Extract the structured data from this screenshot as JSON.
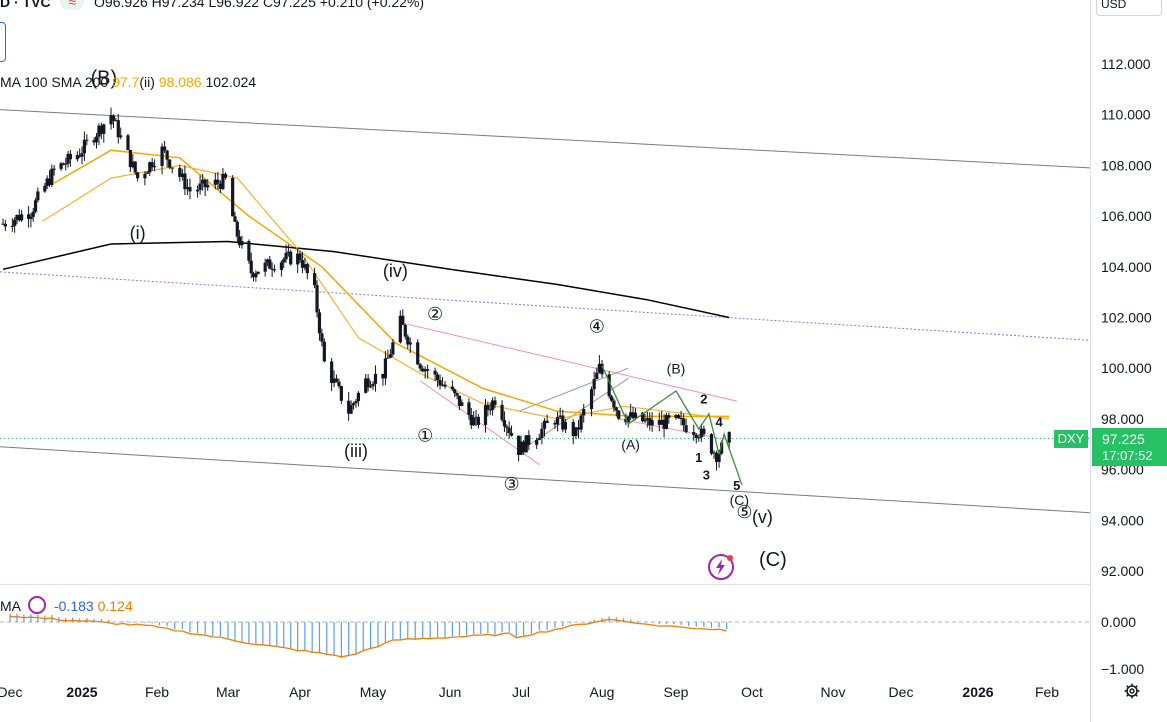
{
  "header": {
    "symbol_text": "D · TVC",
    "ohlc_text": "O96.926 H97.234 L96.922 C97.225 +0.210 (+0.22%)",
    "currency": "USD"
  },
  "indicators": {
    "prefix": "MA 100 SMA 200",
    "ma_value": "97.7",
    "wave_ii": "(ii)",
    "sma100_value": "98.086",
    "sma200_value": "102.024"
  },
  "price_tag": {
    "symbol": "DXY",
    "price": "97.225",
    "time": "17:07:52"
  },
  "oscillator": {
    "label_prefix": "MA",
    "value1": "-0.183",
    "value2": "0.124"
  },
  "colors": {
    "up": "#089981",
    "down": "#f23645",
    "sma100": "#f7a600",
    "sma200": "#000000",
    "wave_green": "#388e3c",
    "price_tag": "#26c165",
    "macd_line": "#f57c00",
    "hist": "#2962ff"
  },
  "icons": [
    "settings-gear-icon",
    "lightning-bolt-icon",
    "oscillator-toggle-icon"
  ],
  "chart_data": {
    "type": "candlestick",
    "title": "DXY",
    "ylim": [
      91.5,
      113.5
    ],
    "y_ticks": [
      "112.000",
      "110.000",
      "108.000",
      "106.000",
      "104.000",
      "102.000",
      "100.000",
      "98.000",
      "96.000",
      "94.000",
      "92.000"
    ],
    "x_ticks": [
      "Dec",
      "2025",
      "Feb",
      "Mar",
      "Apr",
      "May",
      "Jun",
      "Jul",
      "Aug",
      "Sep",
      "Oct",
      "Nov",
      "Dec",
      "2026",
      "Feb"
    ],
    "osc_ticks": [
      "0.000",
      "−1.000"
    ],
    "price_path": [
      [
        "2024-11-28",
        105.7
      ],
      [
        "2024-12-10",
        106.2
      ],
      [
        "2024-12-20",
        107.8
      ],
      [
        "2024-12-31",
        108.5
      ],
      [
        "2025-01-13",
        110.0
      ],
      [
        "2025-01-24",
        107.5
      ],
      [
        "2025-02-03",
        108.6
      ],
      [
        "2025-02-14",
        107.0
      ],
      [
        "2025-02-28",
        107.4
      ],
      [
        "2025-03-04",
        105.5
      ],
      [
        "2025-03-11",
        103.8
      ],
      [
        "2025-03-25",
        104.3
      ],
      [
        "2025-04-01",
        104.4
      ],
      [
        "2025-04-07",
        103.0
      ],
      [
        "2025-04-11",
        100.2
      ],
      [
        "2025-04-21",
        98.3
      ],
      [
        "2025-04-28",
        99.5
      ],
      [
        "2025-05-05",
        99.8
      ],
      [
        "2025-05-12",
        101.8
      ],
      [
        "2025-05-20",
        100.2
      ],
      [
        "2025-06-02",
        99.0
      ],
      [
        "2025-06-12",
        97.8
      ],
      [
        "2025-06-20",
        98.8
      ],
      [
        "2025-06-30",
        96.8
      ],
      [
        "2025-07-14",
        98.0
      ],
      [
        "2025-07-22",
        97.4
      ],
      [
        "2025-07-31",
        100.0
      ],
      [
        "2025-08-08",
        98.2
      ],
      [
        "2025-08-22",
        97.8
      ],
      [
        "2025-09-01",
        97.9
      ],
      [
        "2025-09-10",
        97.5
      ],
      [
        "2025-09-17",
        96.6
      ],
      [
        "2025-09-22",
        97.2
      ]
    ],
    "series": [
      {
        "name": "SMA 100",
        "values": [
          [
            [
              "2024-12-20",
              107.3
            ],
            [
              "2025-01-13",
              108.6
            ],
            [
              "2025-02-10",
              108.3
            ],
            [
              "2025-03-10",
              106.0
            ],
            [
              "2025-04-10",
              104.0
            ],
            [
              "2025-05-10",
              101.0
            ],
            [
              "2025-06-15",
              99.2
            ],
            [
              "2025-07-15",
              98.3
            ],
            [
              "2025-08-15",
              98.1
            ],
            [
              "2025-09-22",
              98.1
            ]
          ]
        ]
      },
      {
        "name": "SMA 200",
        "values": [
          [
            [
              "2024-11-28",
              103.9
            ],
            [
              "2025-01-13",
              104.9
            ],
            [
              "2025-03-01",
              105.0
            ],
            [
              "2025-04-15",
              104.6
            ],
            [
              "2025-06-01",
              103.9
            ],
            [
              "2025-07-15",
              103.3
            ],
            [
              "2025-08-20",
              102.7
            ],
            [
              "2025-09-22",
              102.0
            ]
          ]
        ]
      }
    ],
    "wave_labels": [
      {
        "text": "(B)",
        "date": "2025-01-10",
        "price": 111.2
      },
      {
        "text": "(i)",
        "date": "2025-01-24",
        "price": 105.1
      },
      {
        "text": "(iv)",
        "date": "2025-05-10",
        "price": 103.6
      },
      {
        "text": "(iii)",
        "date": "2025-04-24",
        "price": 96.5
      },
      {
        "text": "②",
        "date": "2025-05-26",
        "price": 101.9
      },
      {
        "text": "①",
        "date": "2025-05-22",
        "price": 97.1
      },
      {
        "text": "③",
        "date": "2025-06-27",
        "price": 95.2
      },
      {
        "text": "④",
        "date": "2025-07-30",
        "price": 101.4
      },
      {
        "text": "(B)",
        "date": "2025-09-01",
        "price": 99.8
      },
      {
        "text": "(A)",
        "date": "2025-08-13",
        "price": 96.8
      },
      {
        "text": "2",
        "date": "2025-09-12",
        "price": 98.6
      },
      {
        "text": "4",
        "date": "2025-09-18",
        "price": 97.7
      },
      {
        "text": "1",
        "date": "2025-09-10",
        "price": 96.3
      },
      {
        "text": "3",
        "date": "2025-09-13",
        "price": 95.6
      },
      {
        "text": "5",
        "date": "2025-09-25",
        "price": 95.2
      },
      {
        "text": "(C)",
        "date": "2025-09-26",
        "price": 94.6
      },
      {
        "text": "⑤",
        "date": "2025-09-28",
        "price": 94.1
      },
      {
        "text": "(v)",
        "date": "2025-10-05",
        "price": 93.9
      },
      {
        "text": "(C)",
        "date": "2025-10-09",
        "price": 92.2
      }
    ]
  }
}
